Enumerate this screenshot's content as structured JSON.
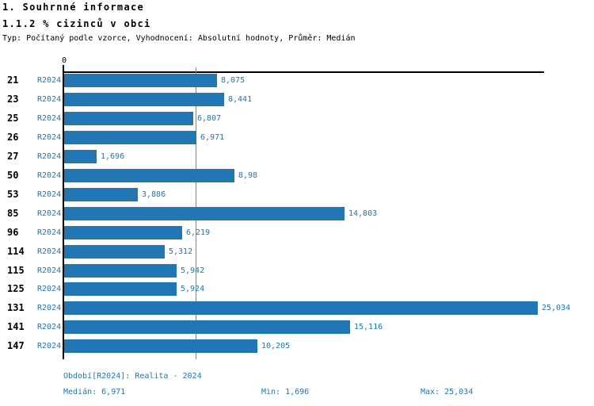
{
  "header": {
    "title": "1. Souhrnné informace",
    "subtitle": "1.1.2 % cizinců v obci",
    "meta": "Typ: Počítaný podle vzorce, Vyhodnocení: Absolutní hodnoty, Průměr: Medián"
  },
  "chart_data": {
    "type": "bar",
    "orientation": "horizontal",
    "title": "1.1.2 % cizinců v obci",
    "categories": [
      "21",
      "23",
      "25",
      "26",
      "27",
      "50",
      "53",
      "85",
      "96",
      "114",
      "115",
      "125",
      "131",
      "141",
      "147"
    ],
    "series": [
      {
        "name": "R2024",
        "values": [
          8.075,
          8.441,
          6.807,
          6.971,
          1.696,
          8.98,
          3.886,
          14.803,
          6.219,
          5.312,
          5.942,
          5.924,
          25.034,
          15.116,
          10.205
        ]
      }
    ],
    "value_labels": [
      "8,075",
      "8,441",
      "6,807",
      "6,971",
      "1,696",
      "8,98",
      "3,886",
      "14,803",
      "6,219",
      "5,312",
      "5,942",
      "5,924",
      "25,034",
      "15,116",
      "10,205"
    ],
    "x_axis": {
      "zero_label": "0",
      "min": 0,
      "max": 25.2,
      "grid": false
    },
    "median_line_value": 6.971,
    "stats": {
      "median": 6.971,
      "min": 1.696,
      "max": 25.034
    },
    "legend_position": "none",
    "colors": {
      "bar": "#2077b4",
      "median_line": "#4a96c8",
      "label_text": "#2077b4",
      "axis": "#000000"
    }
  },
  "footer": {
    "period": "Období[R2024]: Realita - 2024",
    "median": "Medián: 6,971",
    "min": "Min: 1,696",
    "max": "Max: 25,034"
  }
}
